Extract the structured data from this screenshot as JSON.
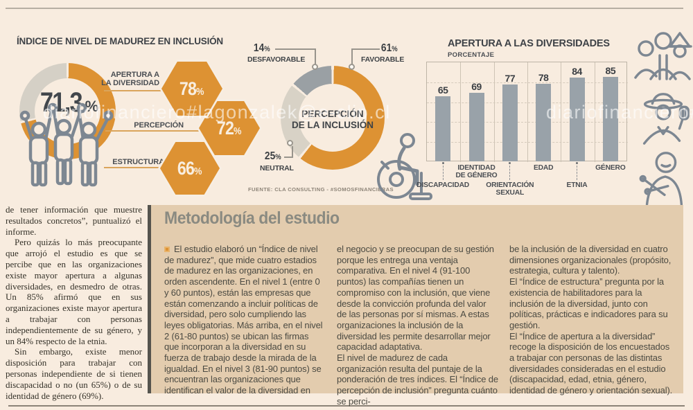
{
  "units": {
    "percent": "%"
  },
  "colors": {
    "accent_orange": "#dd9233",
    "neutral_light_gray": "#d8d2c6",
    "unfavorable_gray": "#9aa0a4",
    "bar_gray": "#99a2a9",
    "page_bg": "#f8ecdf",
    "panel_bg": "#e3ccae"
  },
  "watermark": {
    "left": "diariofinanciero#lagonzalek@e-clip.cl",
    "right": "diariofinanciero#lago"
  },
  "icons": {
    "team-raised-arms-icon": "three outlined people with raised joined hands",
    "wheelchair-icon": "outlined person seated in wheelchair",
    "group-people-icon": "outlined group of three diverse people",
    "waving-person-icon": "outlined person with wide hat waving",
    "knitting-person-icon": "outlined elderly person knitting"
  },
  "chart_data": [
    {
      "id": "maturity_donut",
      "type": "pie",
      "title": "ÍNDICE DE NIVEL DE MADUREZ EN INCLUSIÓN",
      "center_value": "71,3",
      "slices": [
        {
          "value": 71.3,
          "color": "#dd9233"
        },
        {
          "value": 28.7,
          "color": "#d5d0c6"
        }
      ],
      "callouts": [
        {
          "label": "APERTURA A\nLA DIVERSIDAD",
          "value": "78"
        },
        {
          "label": "PERCEPCIÓN",
          "value": "72"
        },
        {
          "label": "ESTRUCTURA",
          "value": "66"
        }
      ]
    },
    {
      "id": "perception_donut",
      "type": "pie",
      "center_label": "PERCEPCIÓN\nDE LA INCLUSIÓN",
      "slices": [
        {
          "label": "FAVORABLE",
          "value": 61,
          "color": "#dd9233"
        },
        {
          "label": "NEUTRAL",
          "value": 25,
          "color": "#d8d2c6"
        },
        {
          "label": "DESFAVORABLE",
          "value": 14,
          "color": "#9aa0a4"
        }
      ],
      "source": "FUENTE: CLA CONSULTING - #SOMOSFINANCIERAS"
    },
    {
      "id": "openness_bar",
      "type": "bar",
      "title": "APERTURA A LAS DIVERSIDADES",
      "ylabel": "PORCENTAJE",
      "categories": [
        "DISCAPACIDAD",
        "IDENTIDAD\nDE GÉNERO",
        "ORIENTACIÓN\nSEXUAL",
        "EDAD",
        "ETNIA",
        "GÉNERO"
      ],
      "values": [
        65,
        69,
        77,
        78,
        84,
        85
      ],
      "label_rows": [
        "low",
        "high",
        "low",
        "high",
        "low",
        "high"
      ],
      "ylim": [
        0,
        100
      ],
      "grid": true,
      "legend": "none"
    }
  ],
  "article": {
    "paragraphs": [
      "de tener información que muestre resultados concretos”, puntualizó el informe.",
      "Pero quizás lo más preocupante que arrojó el estudio es que se percibe que en las organizaciones existe mayor apertura a algunas diversidades, en desmedro de otras. Un 85% afirmó que en sus organizaciones existe mayor apertura a trabajar con personas independientemente de su género, y un 84% respecto de la etnia.",
      "Sin embargo, existe menor disposición para trabajar con personas independiente de si tienen discapacidad o no (un 65%) o de su identidad de género (69%)."
    ]
  },
  "methodology": {
    "title": "Metodología del estudio",
    "columns": [
      {
        "paragraphs": [
          "El estudio elaboró un “Índice de nivel de madurez”, que mide cuatro estadios de madurez en las organizaciones, en orden ascendente. En el nivel 1 (entre 0 y 60 puntos), están las empresas que están comenzando a incluir políticas de diversidad, pero solo cumpliendo las leyes obligatorias. Más arriba, en el nivel 2 (61-80 puntos) se ubican las firmas que incorporan a la diversidad en su fuerza de trabajo desde la mirada de la igualdad. En el nivel 3 (81-90 puntos) se encuentran las organizaciones que identifican el valor de la diversidad en"
        ]
      },
      {
        "paragraphs": [
          "el negocio y se preocupan de su gestión porque les entrega una ventaja comparativa. En el nivel 4 (91-100 puntos) las compañías tienen un compromiso con la inclusión, que viene desde la convicción profunda del valor de las personas por sí mismas. A estas organizaciones la inclusión de la diversidad les permite desarrollar mejor capacidad adaptativa.",
          "El nivel de madurez de cada organización resulta del puntaje de la ponderación de tres índices. El “Índice de percepción de inclusión” pregunta cuánto se perci-"
        ]
      },
      {
        "paragraphs": [
          "be la inclusión de la diversidad en cuatro dimensiones organizacionales (propósito, estrategia, cultura y talento).",
          "El “Índice de estructura” pregunta por la existencia de habilitadores para la inclusión de la diversidad, junto con políticas, prácticas e indicadores para su gestión.",
          "El “Índice de apertura a la diversidad” recoge la disposición de los encuestados a trabajar con personas de las distintas diversidades consideradas en el estudio (discapacidad, edad, etnia, género, identidad de género y orientación sexual)."
        ]
      }
    ]
  }
}
